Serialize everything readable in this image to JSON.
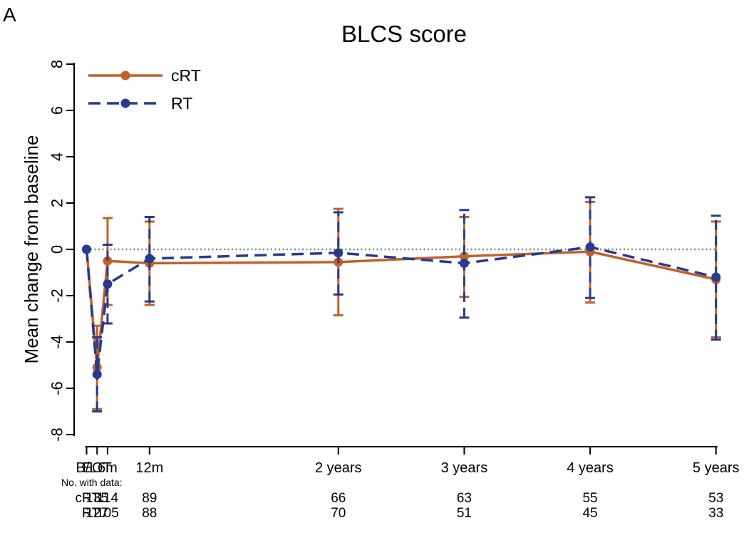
{
  "panel_label": "A",
  "chart_data": {
    "type": "line",
    "title": "BLCS score",
    "xlabel": "",
    "ylabel": "Mean change from baseline",
    "ylim": [
      -8,
      8
    ],
    "yticks": [
      8,
      6,
      4,
      2,
      0,
      -2,
      -4,
      -6,
      -8
    ],
    "categories": [
      "B/L",
      "EOT",
      "6m",
      "12m",
      "2 years",
      "3 years",
      "4 years",
      "5 years"
    ],
    "x_months": [
      0,
      1,
      2,
      6,
      24,
      36,
      48,
      60
    ],
    "reference_line": 0,
    "grid": false,
    "legend_position": "top-left",
    "series": [
      {
        "name": "cRT",
        "color": "#c0622a",
        "line_style": "solid",
        "values": [
          0,
          -5.1,
          -0.5,
          -0.6,
          -0.55,
          -0.3,
          -0.1,
          -1.3
        ],
        "ci_low": [
          null,
          -6.9,
          -2.4,
          -2.4,
          -2.85,
          -2.05,
          -2.3,
          -3.8
        ],
        "ci_high": [
          null,
          -3.3,
          1.35,
          1.2,
          1.75,
          1.4,
          2.05,
          1.2
        ]
      },
      {
        "name": "RT",
        "color": "#283a8e",
        "line_style": "dashed",
        "values": [
          0,
          -5.4,
          -1.5,
          -0.4,
          -0.15,
          -0.6,
          0.1,
          -1.2
        ],
        "ci_low": [
          null,
          -7.0,
          -3.2,
          -2.25,
          -1.95,
          -2.95,
          -2.1,
          -3.9
        ],
        "ci_high": [
          null,
          -3.8,
          0.2,
          1.4,
          1.6,
          1.7,
          2.25,
          1.45
        ]
      }
    ],
    "counts_header": "No. with data:",
    "counts": [
      {
        "label": "cRT",
        "values": [
          "135",
          "114",
          "89",
          "66",
          "63",
          "55",
          "53"
        ]
      },
      {
        "label": "RT",
        "values": [
          "127",
          "105",
          "88",
          "70",
          "51",
          "45",
          "33"
        ]
      }
    ]
  }
}
